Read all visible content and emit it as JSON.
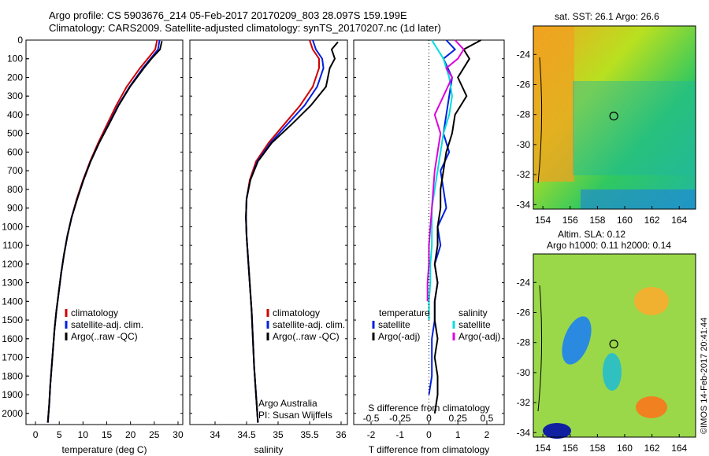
{
  "title_line1": "Argo profile: CS 5903676_214 05-Feb-2017 20170209_803 28.097S 159.199E",
  "title_line2": "Climatology: CARS2009. Satellite-adjusted climatology: synTS_20170207.nc (1d later)",
  "credit_vertical": "©IMOS 14-Feb-2017 20:41:44",
  "chart_data": [
    {
      "type": "line",
      "xlabel": "temperature (deg C)",
      "ylabel": "",
      "xlim": [
        -2,
        31
      ],
      "ylim": [
        2060,
        0
      ],
      "xticks": [
        0,
        5,
        10,
        15,
        20,
        25,
        30
      ],
      "yticks": [
        0,
        100,
        200,
        300,
        400,
        500,
        600,
        700,
        800,
        900,
        1000,
        1100,
        1200,
        1300,
        1400,
        1500,
        1600,
        1700,
        1800,
        1900,
        2000
      ],
      "legend": [
        "climatology",
        "satellite-adj. clim.",
        "Argo(..raw -QC)"
      ],
      "series": [
        {
          "name": "climatology",
          "color": "#d00000",
          "x": [
            25.6,
            25.2,
            23.6,
            22.0,
            19.2,
            17.0,
            15.1,
            13.2,
            11.5,
            10.0,
            8.7,
            7.6,
            6.7,
            6.0,
            5.4,
            4.9,
            4.4,
            4.0,
            3.7,
            3.4,
            3.1,
            2.9,
            2.6
          ],
          "y": [
            0,
            50,
            100,
            150,
            250,
            350,
            450,
            550,
            650,
            750,
            850,
            950,
            1050,
            1150,
            1250,
            1350,
            1450,
            1550,
            1650,
            1750,
            1850,
            1950,
            2050
          ]
        },
        {
          "name": "satellite-adj. clim.",
          "color": "#0020e0",
          "x": [
            26.1,
            25.8,
            24.2,
            22.6,
            19.8,
            17.4,
            15.4,
            13.4,
            11.6,
            10.1,
            8.8,
            7.6,
            6.7,
            6.0,
            5.4,
            4.9,
            4.4,
            4.0,
            3.7,
            3.4,
            3.1,
            2.9,
            2.6
          ],
          "y": [
            0,
            50,
            100,
            150,
            250,
            350,
            450,
            550,
            650,
            750,
            850,
            950,
            1050,
            1150,
            1250,
            1350,
            1450,
            1550,
            1650,
            1750,
            1850,
            1950,
            2050
          ]
        },
        {
          "name": "Argo(..raw -QC)",
          "color": "#000000",
          "x": [
            26.6,
            26.2,
            24.4,
            22.8,
            19.9,
            17.5,
            15.5,
            13.4,
            11.6,
            10.1,
            8.8,
            7.6,
            6.7,
            6.0,
            5.4,
            4.9,
            4.4,
            4.0,
            3.7,
            3.4,
            3.1,
            2.9,
            2.6
          ],
          "y": [
            5,
            50,
            100,
            150,
            250,
            350,
            450,
            550,
            650,
            750,
            850,
            950,
            1050,
            1150,
            1250,
            1350,
            1450,
            1550,
            1650,
            1750,
            1850,
            1950,
            2050
          ]
        }
      ]
    },
    {
      "type": "line",
      "xlabel": "salinity",
      "xlim": [
        33.6,
        36.1
      ],
      "ylim": [
        2060,
        0
      ],
      "xticks": [
        34,
        34.5,
        35,
        35.5,
        36
      ],
      "legend": [
        "climatology",
        "satellite-adj. clim.",
        "Argo(..raw -QC)"
      ],
      "annotation_line1": "Argo Australia",
      "annotation_line2": "PI: Susan Wijffels",
      "series": [
        {
          "name": "climatology",
          "color": "#d00000",
          "x": [
            35.5,
            35.55,
            35.65,
            35.65,
            35.55,
            35.35,
            35.1,
            34.85,
            34.65,
            34.55,
            34.5,
            34.49,
            34.5,
            34.52,
            34.55,
            34.58,
            34.6,
            34.62,
            34.64,
            34.66,
            34.67,
            34.68
          ],
          "y": [
            0,
            50,
            100,
            150,
            250,
            350,
            450,
            550,
            650,
            750,
            850,
            950,
            1050,
            1150,
            1300,
            1450,
            1600,
            1750,
            1850,
            1950,
            2000,
            2050
          ]
        },
        {
          "name": "satellite-adj. clim.",
          "color": "#0020e0",
          "x": [
            35.55,
            35.6,
            35.7,
            35.72,
            35.62,
            35.42,
            35.15,
            34.88,
            34.67,
            34.56,
            34.5,
            34.49,
            34.5,
            34.52,
            34.55,
            34.58,
            34.6,
            34.62,
            34.64,
            34.66,
            34.67,
            34.68
          ],
          "y": [
            0,
            50,
            100,
            150,
            250,
            350,
            450,
            550,
            650,
            750,
            850,
            950,
            1050,
            1150,
            1300,
            1450,
            1600,
            1750,
            1850,
            1950,
            2000,
            2050
          ]
        },
        {
          "name": "Argo(..raw -QC)",
          "color": "#000000",
          "x": [
            35.95,
            35.85,
            35.9,
            35.82,
            35.76,
            35.52,
            35.22,
            34.9,
            34.68,
            34.56,
            34.5,
            34.49,
            34.5,
            34.52,
            34.55,
            34.58,
            34.6,
            34.62,
            34.64,
            34.66,
            34.67,
            34.68
          ],
          "y": [
            10,
            50,
            100,
            150,
            250,
            350,
            450,
            550,
            650,
            750,
            850,
            950,
            1050,
            1150,
            1300,
            1450,
            1600,
            1750,
            1850,
            1950,
            2000,
            2050
          ]
        }
      ]
    },
    {
      "type": "line",
      "xlabel": "T difference from climatology",
      "xlabel_top": "S difference from climatology",
      "xlim": [
        -2.6,
        2.6
      ],
      "ylim": [
        2060,
        0
      ],
      "xticks": [
        -2,
        -1,
        0,
        1,
        2
      ],
      "xticks_top": [
        "-0.5",
        "-0.25",
        "0",
        "0.25",
        "0.5"
      ],
      "legend_left_title": "temperature",
      "legend_right_title": "salinity",
      "legend": [
        "satellite",
        "Argo(-adj)",
        "satellite",
        "Argo(-adj)"
      ],
      "series": [
        {
          "name": "satellite",
          "group": "temperature",
          "color": "#0020e0",
          "x": [
            0.6,
            0.9,
            0.5,
            0.8,
            0.7,
            0.6,
            0.5,
            0.7,
            0.4,
            0.5,
            0.6,
            0.3,
            0.4,
            0.2,
            0.3,
            0.2,
            0.2,
            0.1,
            0.1,
            0.1,
            0.0
          ],
          "y": [
            0,
            50,
            100,
            200,
            300,
            400,
            500,
            600,
            700,
            800,
            900,
            1000,
            1100,
            1200,
            1300,
            1400,
            1500,
            1600,
            1700,
            1800,
            1900
          ]
        },
        {
          "name": "Argo(-adj)",
          "group": "temperature",
          "color": "#000000",
          "x": [
            1.8,
            1.2,
            1.4,
            1.0,
            1.3,
            0.9,
            0.8,
            0.6,
            0.5,
            0.4,
            0.4,
            0.3,
            0.3,
            0.2,
            0.3,
            0.2,
            0.2,
            0.3,
            0.2,
            0.3,
            0.3,
            0.2
          ],
          "y": [
            0,
            50,
            100,
            200,
            300,
            400,
            500,
            600,
            700,
            800,
            900,
            1000,
            1100,
            1200,
            1300,
            1400,
            1500,
            1600,
            1700,
            1800,
            1900,
            2000
          ]
        },
        {
          "name": "satellite",
          "group": "salinity",
          "color": "#00dddd",
          "x": [
            0.1,
            0.3,
            0.5,
            0.7,
            0.8,
            0.7,
            0.5,
            0.4,
            0.3,
            0.2,
            0.1,
            0.1,
            0.1,
            0.05,
            0.05,
            0.0,
            0.0
          ],
          "y": [
            0,
            50,
            100,
            200,
            300,
            400,
            500,
            600,
            700,
            800,
            900,
            1000,
            1100,
            1200,
            1300,
            1400,
            1500
          ]
        },
        {
          "name": "Argo(-adj)",
          "group": "salinity",
          "color": "#dd00dd",
          "x": [
            0.9,
            1.2,
            1.0,
            0.6,
            0.8,
            0.5,
            0.2,
            0.4,
            0.3,
            0.2,
            0.15,
            0.1,
            0.05,
            0.0,
            0.0,
            -0.05,
            -0.05
          ],
          "y": [
            0,
            50,
            100,
            150,
            200,
            300,
            400,
            500,
            600,
            700,
            800,
            900,
            1000,
            1100,
            1200,
            1300,
            1400
          ]
        }
      ]
    },
    {
      "type": "heatmap",
      "title": "sat. SST: 26.1  Argo: 26.6",
      "xticks": [
        154,
        156,
        158,
        160,
        162,
        164
      ],
      "yticks": [
        -24,
        -26,
        -28,
        -30,
        -32,
        -34
      ],
      "xlim": [
        153.3,
        165.2
      ],
      "ylim": [
        -34.3,
        -22.1
      ],
      "marker": {
        "lon": 159.2,
        "lat": -28.1
      }
    },
    {
      "type": "heatmap",
      "title_line1": "Altim. SLA: 0.12",
      "title_line2": "Argo h1000: 0.11 h2000: 0.14",
      "xticks": [
        154,
        156,
        158,
        160,
        162,
        164
      ],
      "yticks": [
        -24,
        -26,
        -28,
        -30,
        -32,
        -34
      ],
      "xlim": [
        153.3,
        165.2
      ],
      "ylim": [
        -34.3,
        -22.1
      ],
      "marker": {
        "lon": 159.2,
        "lat": -28.1
      }
    }
  ]
}
